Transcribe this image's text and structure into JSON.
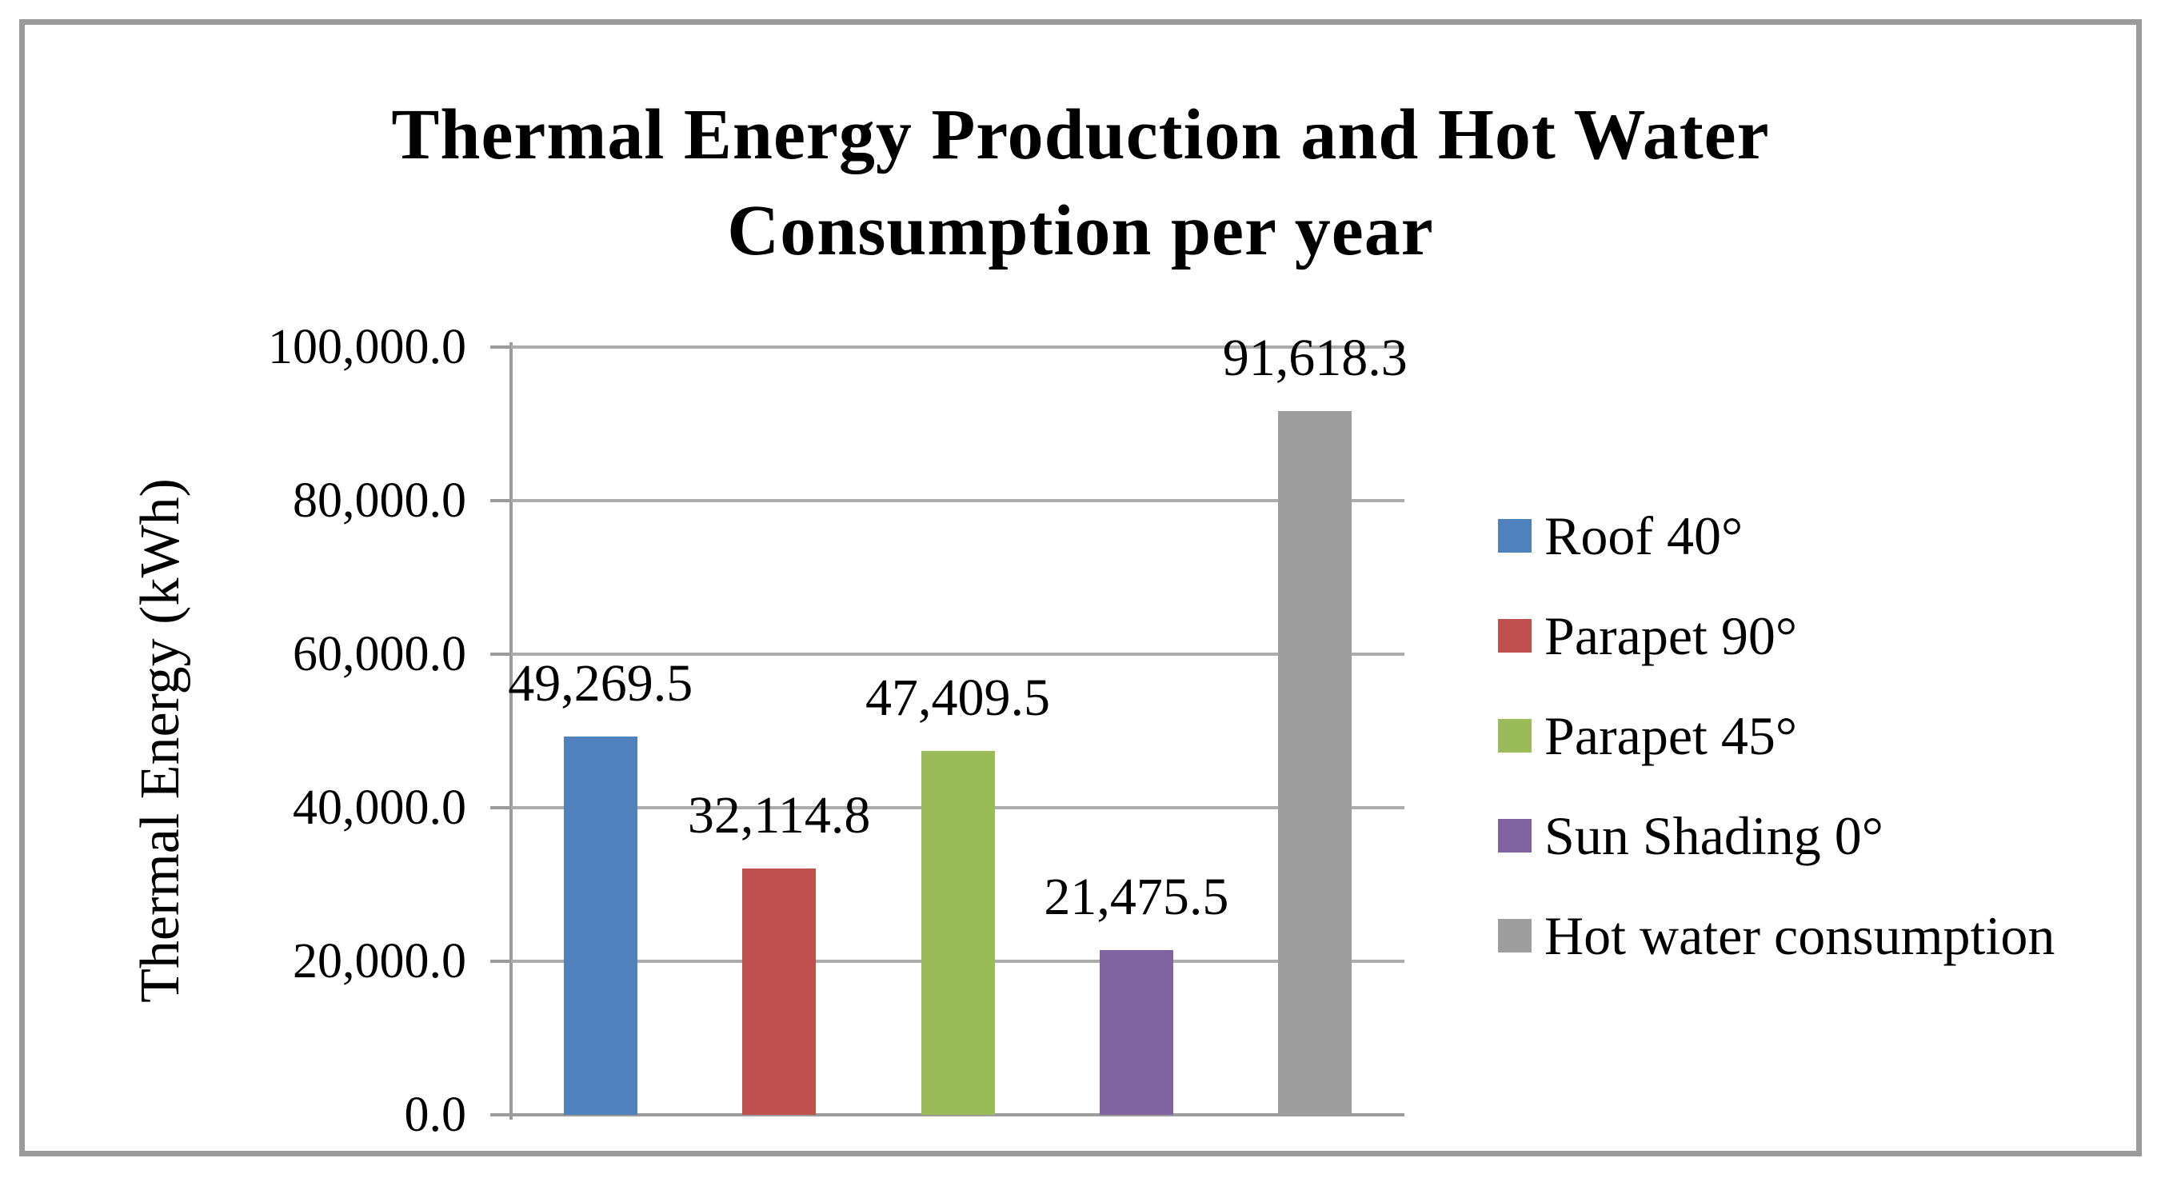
{
  "frame": {
    "border_color": "#9B9B9B",
    "background": "#FFFFFF"
  },
  "chart_data": {
    "type": "bar",
    "title": "Thermal Energy Production and Hot Water Consumption per year",
    "title_lines": [
      "Thermal Energy Production and Hot Water",
      "Consumption per year"
    ],
    "ylabel": "Thermal Energy (kWh)",
    "xlabel": "",
    "ylim": [
      0,
      100000
    ],
    "ytick_interval": 20000,
    "grid": true,
    "legend_position": "right",
    "yticks": [
      {
        "value": 0,
        "label": "0.0"
      },
      {
        "value": 20000,
        "label": "20,000.0"
      },
      {
        "value": 40000,
        "label": "40,000.0"
      },
      {
        "value": 60000,
        "label": "60,000.0"
      },
      {
        "value": 80000,
        "label": "80,000.0"
      },
      {
        "value": 100000,
        "label": "100,000.0"
      }
    ],
    "series": [
      {
        "name": "Roof 40°",
        "value": 49269.5,
        "data_label": "49,269.5",
        "color": "#4F81BD"
      },
      {
        "name": "Parapet 90°",
        "value": 32114.8,
        "data_label": "32,114.8",
        "color": "#C0504D"
      },
      {
        "name": "Parapet 45°",
        "value": 47409.5,
        "data_label": "47,409.5",
        "color": "#9BBB59"
      },
      {
        "name": "Sun Shading 0°",
        "value": 21475.5,
        "data_label": "21,475.5",
        "color": "#8064A2"
      },
      {
        "name": "Hot water consumption",
        "value": 91618.3,
        "data_label": "91,618.3",
        "color": "#9E9E9E"
      }
    ],
    "colors": {
      "gridline": "#ACACAC",
      "axis": "#9B9B9B",
      "text": "#000000"
    }
  }
}
